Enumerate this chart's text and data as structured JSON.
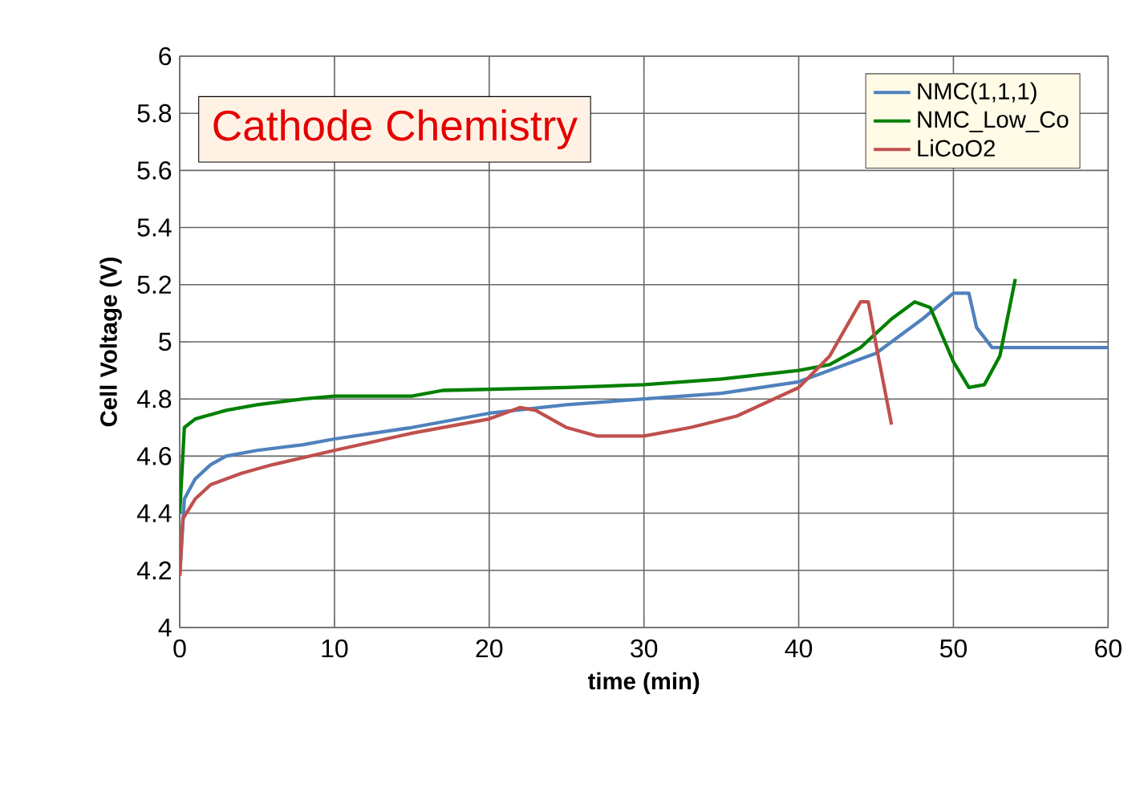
{
  "chart_data": {
    "type": "line",
    "title": "Cathode Chemistry",
    "xlabel": "time (min)",
    "ylabel": "Cell Voltage (V)",
    "xlim": [
      0,
      60
    ],
    "xticks": [
      0,
      10,
      20,
      30,
      40,
      50,
      60
    ],
    "ylim": [
      4,
      6
    ],
    "yticks": [
      4,
      {
        "value": 4.2,
        "label": "4.2"
      },
      {
        "value": 4.4,
        "label": "4.4"
      },
      {
        "value": 4.6,
        "label": "4.6"
      },
      {
        "value": 4.8,
        "label": "4.8"
      },
      5,
      {
        "value": 5.2,
        "label": "5.2"
      },
      {
        "value": 5.4,
        "label": "5.4"
      },
      {
        "value": 5.6,
        "label": "5.6"
      },
      {
        "value": 5.8,
        "label": "5.8"
      },
      6
    ],
    "grid": true,
    "legend": "top right",
    "marker": "none",
    "line_style": "solid",
    "series": [
      {
        "name": "NMC(1,1,1)",
        "color": "#4f81bd",
        "x": [
          0,
          0.3,
          1,
          2,
          3,
          5,
          8,
          10,
          15,
          20,
          25,
          30,
          35,
          40,
          42,
          45,
          48,
          50,
          51,
          51.5,
          52.5,
          60
        ],
        "values": [
          4.18,
          4.45,
          4.52,
          4.57,
          4.6,
          4.62,
          4.64,
          4.66,
          4.7,
          4.75,
          4.78,
          4.8,
          4.82,
          4.86,
          4.9,
          4.96,
          5.08,
          5.17,
          5.17,
          5.05,
          4.98,
          4.98
        ]
      },
      {
        "name": "NMC_Low_Co",
        "color": "#008000",
        "x": [
          0,
          0.3,
          1,
          3,
          5,
          8,
          10,
          15,
          17,
          25,
          30,
          35,
          40,
          42,
          44,
          46,
          47.5,
          48.5,
          50,
          51,
          52,
          53,
          54
        ],
        "values": [
          4.4,
          4.7,
          4.73,
          4.76,
          4.78,
          4.8,
          4.81,
          4.81,
          4.83,
          4.84,
          4.85,
          4.87,
          4.9,
          4.92,
          4.98,
          5.08,
          5.14,
          5.12,
          4.93,
          4.84,
          4.85,
          4.95,
          5.22
        ]
      },
      {
        "name": "LiCoO2",
        "color": "#c0504d",
        "x": [
          0,
          0.2,
          1,
          2,
          4,
          6,
          10,
          15,
          20,
          22,
          23,
          25,
          27,
          30,
          33,
          36,
          40,
          42,
          44,
          44.5,
          45,
          45.5,
          46
        ],
        "values": [
          4.18,
          4.38,
          4.45,
          4.5,
          4.54,
          4.57,
          4.62,
          4.68,
          4.73,
          4.77,
          4.76,
          4.7,
          4.67,
          4.67,
          4.7,
          4.74,
          4.84,
          4.95,
          5.14,
          5.14,
          4.99,
          4.85,
          4.71
        ]
      }
    ]
  }
}
